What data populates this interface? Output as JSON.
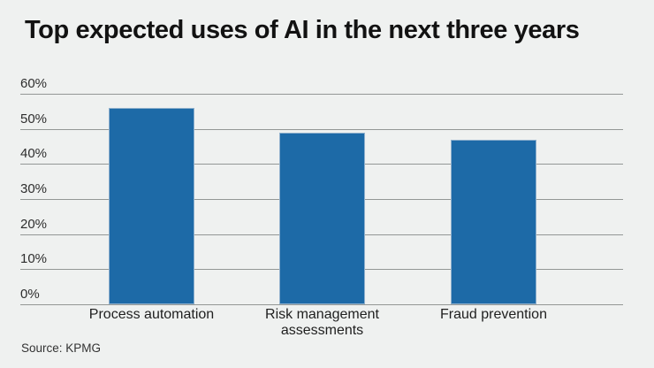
{
  "chart_data": {
    "type": "bar",
    "title": "Top expected uses of AI in the next three years",
    "categories": [
      "Process automation",
      "Risk management assessments",
      "Fraud prevention"
    ],
    "values": [
      56,
      49,
      47
    ],
    "unit": "%",
    "xlabel": "",
    "ylabel": "",
    "ylim": [
      0,
      60
    ],
    "yticks": [
      {
        "value": 0,
        "label": "0%"
      },
      {
        "value": 10,
        "label": "10%"
      },
      {
        "value": 20,
        "label": "20%"
      },
      {
        "value": 30,
        "label": "30%"
      },
      {
        "value": 40,
        "label": "40%"
      },
      {
        "value": 50,
        "label": "50%"
      },
      {
        "value": 60,
        "label": "60%"
      }
    ],
    "grid": true,
    "legend": false,
    "bar_color": "#1d6aa7",
    "bar_edge_color": "#8fb0cd",
    "gridline_color": "#939795",
    "background_color": "#eff1f0",
    "title_color": "#121212"
  },
  "source": "Source: KPMG"
}
